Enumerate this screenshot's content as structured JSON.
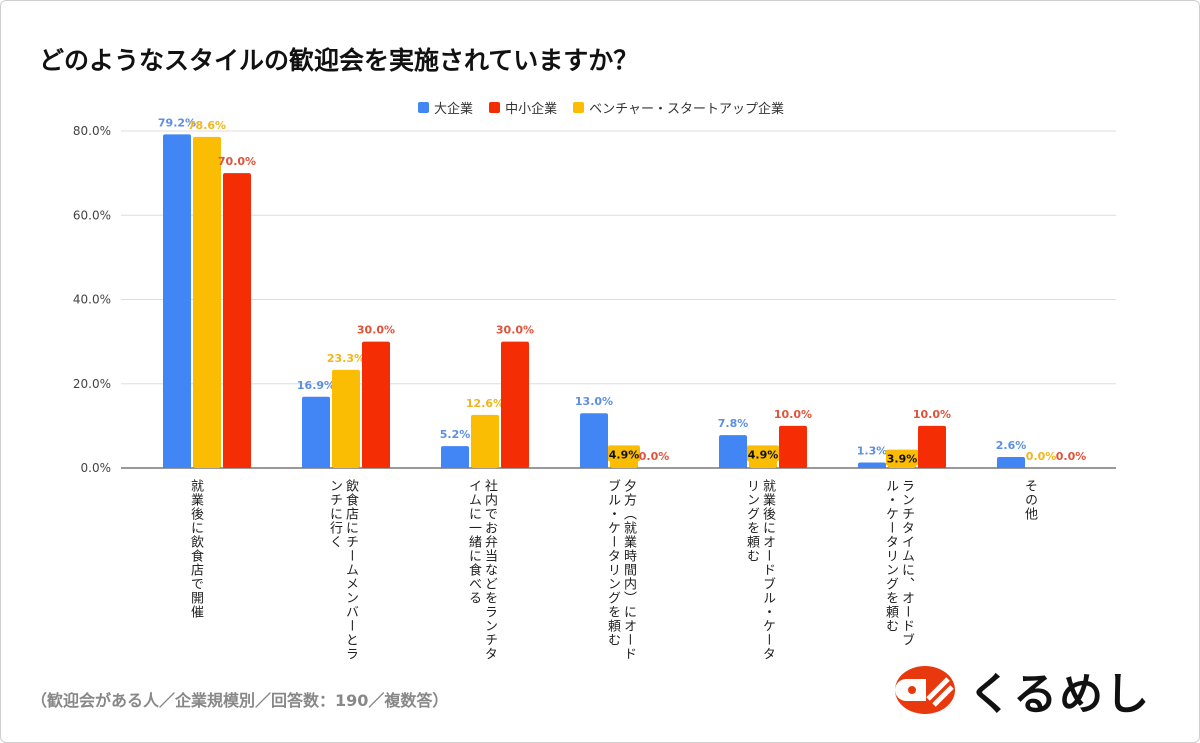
{
  "chart_data": {
    "type": "bar",
    "title": "どのようなスタイルの歓迎会を実施されていますか？",
    "categories": [
      "就業後に飲食店で開催",
      "飲食店にチームメンバーとランチに行く",
      "社内でお弁当などをランチタイムに一緒に食べる",
      "夕方（就業時間内）にオードブル・ケータリングを頼む",
      "就業後にオードブル・ケータリングを頼む",
      "ランチタイムに、オードブル・ケータリングを頼む",
      "その他"
    ],
    "series": [
      {
        "name": "大企業",
        "color": "#4285f4",
        "label_color": "#5b8fe6",
        "values": [
          79.2,
          16.9,
          5.2,
          13.0,
          7.8,
          1.3,
          2.6
        ]
      },
      {
        "name": "ベンチャー・スタートアップ企業",
        "color": "#fbbc04",
        "label_color": "#f2b51c",
        "values": [
          78.6,
          23.3,
          12.6,
          4.9,
          4.9,
          3.9,
          0.0
        ]
      },
      {
        "name": "中小企業",
        "color": "#f52d05",
        "label_color": "#e0533a",
        "values": [
          70.0,
          30.0,
          30.0,
          0.0,
          10.0,
          10.0,
          0.0
        ]
      }
    ],
    "legend_order": [
      "大企業",
      "中小企業",
      "ベンチャー・スタートアップ企業"
    ],
    "legend_position": "top",
    "ylim": [
      0,
      80
    ],
    "yticks": [
      "0.0%",
      "20.0%",
      "40.0%",
      "60.0%",
      "80.0%"
    ],
    "grid": true
  },
  "note": "（歓迎会がある人／企業規模別／回答数：190／複数答）",
  "logo": {
    "text": "くるめし",
    "color": "#e8380d"
  }
}
